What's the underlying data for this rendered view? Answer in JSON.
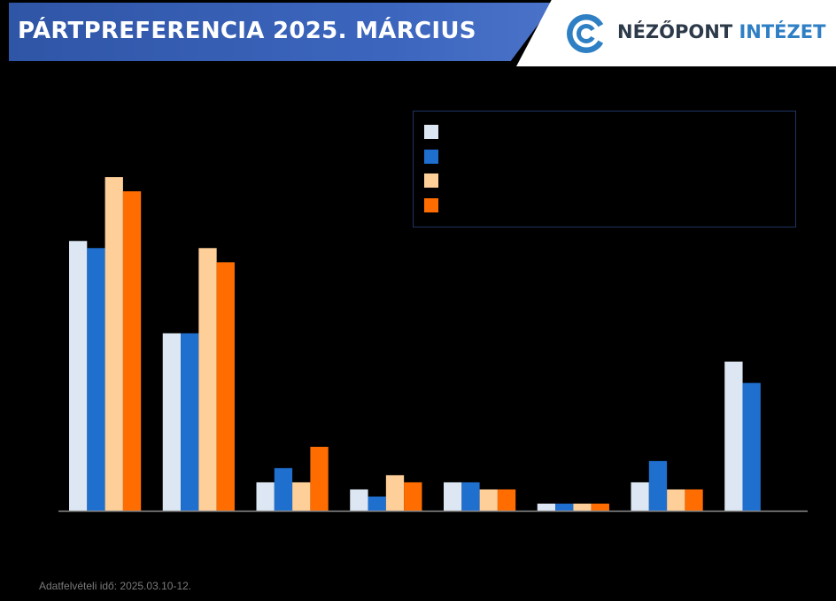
{
  "header": {
    "title": "PÁRTPREFERENCIA 2025. MÁRCIUS",
    "logo_word1": "NÉZŐPONT",
    "logo_word2": "INTÉZET"
  },
  "footnote": "Adatfelvételi idő: 2025.03.10-12.",
  "chart_data": {
    "type": "bar",
    "categories": [
      "",
      "",
      "",
      "",
      "",
      "",
      "",
      ""
    ],
    "series": [
      {
        "color": "#dde7f3",
        "values": [
          38,
          25,
          4,
          3,
          4,
          1,
          4,
          21
        ]
      },
      {
        "color": "#1f6fcf",
        "values": [
          37,
          25,
          6,
          2,
          4,
          1,
          7,
          18
        ]
      },
      {
        "color": "#ffcf99",
        "values": [
          47,
          37,
          4,
          5,
          3,
          1,
          3,
          null
        ]
      },
      {
        "color": "#ff6d00",
        "values": [
          45,
          35,
          9,
          4,
          3,
          1,
          3,
          null
        ]
      }
    ],
    "ylim": [
      0,
      52
    ],
    "legend": "top-right",
    "grid": false
  }
}
